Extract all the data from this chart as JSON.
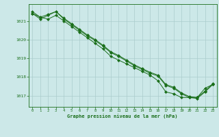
{
  "background_color": "#cce8e8",
  "grid_color": "#aacccc",
  "line_color": "#1a6e1a",
  "title": "Graphe pression niveau de la mer (hPa)",
  "xlim": [
    -0.5,
    23.5
  ],
  "ylim": [
    1016.4,
    1021.9
  ],
  "yticks": [
    1017,
    1018,
    1019,
    1020,
    1021
  ],
  "xticks": [
    0,
    1,
    2,
    3,
    4,
    5,
    6,
    7,
    8,
    9,
    10,
    11,
    12,
    13,
    14,
    15,
    16,
    17,
    18,
    19,
    20,
    21,
    22,
    23
  ],
  "series1_x": [
    0,
    1,
    2,
    3,
    4,
    5,
    6,
    7,
    8,
    9,
    10,
    11,
    12,
    13,
    14,
    15,
    16,
    17,
    18,
    19,
    20,
    21,
    22,
    23
  ],
  "series1_y": [
    1021.4,
    1021.2,
    1021.1,
    1021.3,
    1021.0,
    1020.7,
    1020.4,
    1020.1,
    1019.8,
    1019.5,
    1019.1,
    1018.9,
    1018.7,
    1018.5,
    1018.3,
    1018.1,
    1017.8,
    1017.2,
    1017.1,
    1016.9,
    1016.9,
    1016.9,
    1017.4,
    1017.6
  ],
  "series2_x": [
    0,
    1,
    2,
    3,
    4,
    5,
    6,
    7,
    8,
    9,
    10,
    11,
    12,
    13,
    14,
    15,
    16,
    17,
    18,
    19,
    20,
    21,
    22,
    23
  ],
  "series2_y": [
    1021.4,
    1021.1,
    1021.3,
    1021.5,
    1021.1,
    1020.8,
    1020.5,
    1020.2,
    1019.95,
    1019.65,
    1019.3,
    1019.1,
    1018.85,
    1018.6,
    1018.4,
    1018.2,
    1018.05,
    1017.55,
    1017.4,
    1017.1,
    1016.9,
    1016.85,
    1017.2,
    1017.6
  ],
  "series3_x": [
    0,
    1,
    2,
    3,
    4,
    5,
    6,
    7,
    8,
    9,
    10,
    11,
    12,
    13,
    14,
    15,
    16,
    17,
    18,
    19,
    20,
    21,
    22,
    23
  ],
  "series3_y": [
    1021.5,
    1021.2,
    1021.35,
    1021.5,
    1021.15,
    1020.85,
    1020.55,
    1020.25,
    1020.0,
    1019.7,
    1019.35,
    1019.15,
    1018.9,
    1018.65,
    1018.45,
    1018.25,
    1018.1,
    1017.6,
    1017.45,
    1017.15,
    1016.95,
    1016.9,
    1017.25,
    1017.65
  ]
}
